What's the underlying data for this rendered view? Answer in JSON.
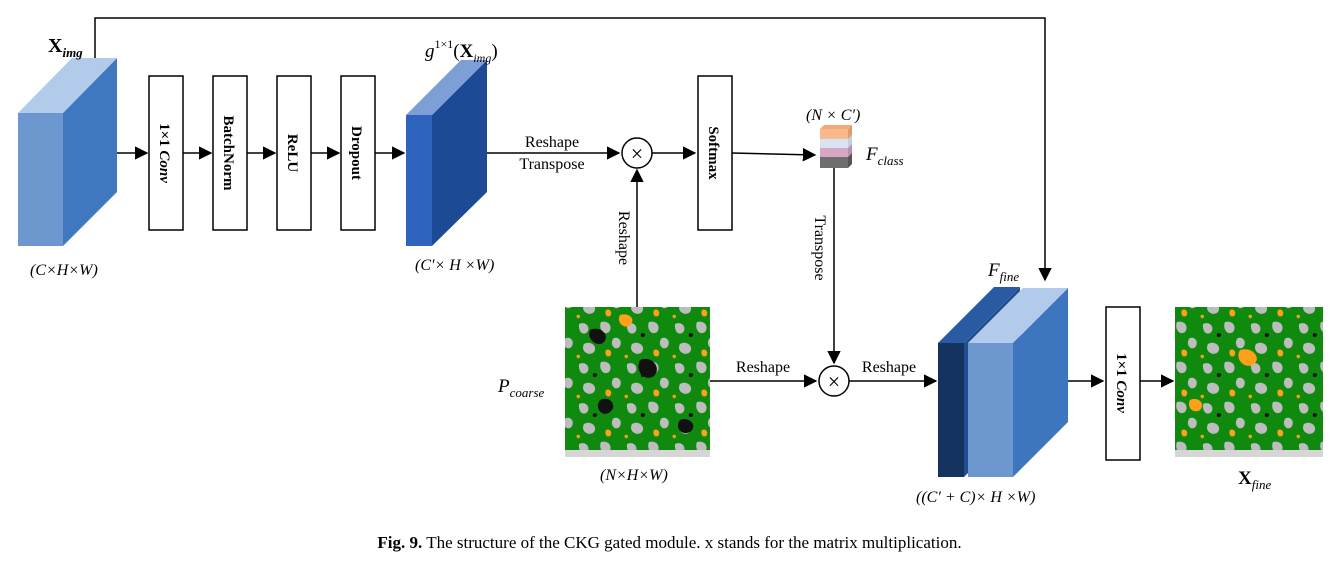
{
  "labels": {
    "x_img_main": "X",
    "x_img_sub": "img",
    "dim_input": "(C×H×W)",
    "g_base": "g",
    "g_sup": "1×1",
    "g_open": "(",
    "g_x": "X",
    "g_sub": "img",
    "g_close": ")",
    "dim_g": "(C′× H ×W)",
    "reshape_transpose_1": "Reshape",
    "reshape_transpose_2": "Transpose",
    "reshape_vertical": "Reshape",
    "dim_class": "(N × C′)",
    "f_class_main": "F",
    "f_class_sub": "class",
    "transpose_vertical": "Transpose",
    "p_coarse_main": "P",
    "p_coarse_sub": "coarse",
    "dim_p": "(N×H×W)",
    "reshape_p": "Reshape",
    "reshape_fine": "Reshape",
    "f_fine_main": "F",
    "f_fine_sub": "fine",
    "dim_fine": "((C′ + C)× H ×W)",
    "x_fine_main": "X",
    "x_fine_sub": "fine"
  },
  "blocks": {
    "conv1": "1×1",
    "conv1_italic": "Conv",
    "batchnorm": "BatchNorm",
    "relu": "ReLU",
    "dropout": "Dropout",
    "softmax": "Softmax",
    "conv2": "1×1",
    "conv2_italic": "Conv"
  },
  "operators": {
    "matmul": "×"
  },
  "caption": {
    "label": "Fig. 9.",
    "text": " The structure of the CKG gated module. x stands for the matrix multiplication."
  },
  "colors": {
    "cube_input_front": "#6d98cf",
    "cube_input_side": "#3f78bf",
    "cube_input_top": "#b3cbea",
    "cube_g_front": "#2e64be",
    "cube_g_side": "#1c4a94",
    "cube_g_top": "#7d9fd6",
    "fine_dark_front": "#14335e",
    "fine_dark_side": "#1f4f8f",
    "fine_light_front": "#6d98cf",
    "fine_light_side": "#3e75bf",
    "fine_light_top": "#b3cbea",
    "class_layers": [
      "#f8b98d",
      "#d9e3f1",
      "#d7a8c5",
      "#6e6e6e"
    ],
    "map_green": "#0f8a0f",
    "map_gray": "#bdbdbd",
    "map_orange": "#ff9f1a",
    "map_black": "#111111"
  }
}
